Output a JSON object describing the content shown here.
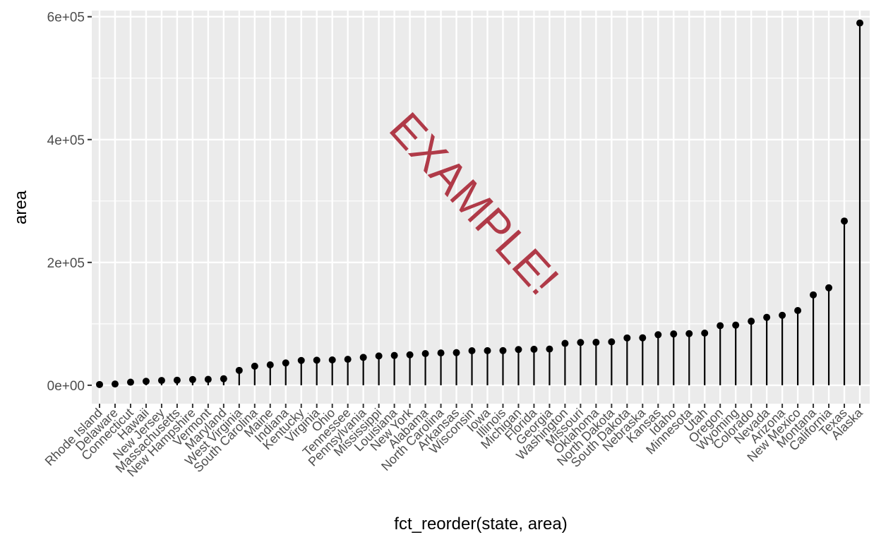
{
  "chart_data": {
    "type": "lollipop",
    "xlabel": "fct_reorder(state, area)",
    "ylabel": "area",
    "ylim": [
      -30000,
      610000
    ],
    "yticks": [
      0,
      200000,
      400000,
      600000
    ],
    "ytick_labels": [
      "0e+00",
      "2e+05",
      "4e+05",
      "6e+05"
    ],
    "watermark": "EXAMPLE!",
    "grid": true,
    "categories": [
      "Rhode Island",
      "Delaware",
      "Connecticut",
      "Hawaii",
      "New Jersey",
      "Massachusetts",
      "New Hampshire",
      "Vermont",
      "Maryland",
      "West Virginia",
      "South Carolina",
      "Maine",
      "Indiana",
      "Kentucky",
      "Virginia",
      "Ohio",
      "Tennessee",
      "Pennsylvania",
      "Mississippi",
      "Louisiana",
      "New York",
      "Alabama",
      "North Carolina",
      "Arkansas",
      "Wisconsin",
      "Iowa",
      "Illinois",
      "Michigan",
      "Florida",
      "Georgia",
      "Washington",
      "Missouri",
      "Oklahoma",
      "North Dakota",
      "South Dakota",
      "Nebraska",
      "Kansas",
      "Idaho",
      "Minnesota",
      "Utah",
      "Oregon",
      "Wyoming",
      "Colorado",
      "Nevada",
      "Arizona",
      "New Mexico",
      "Montana",
      "California",
      "Texas",
      "Alaska"
    ],
    "values": [
      1214,
      2057,
      5009,
      6450,
      7836,
      8257,
      9304,
      9609,
      10577,
      24181,
      31055,
      33215,
      36291,
      40395,
      40815,
      41222,
      42244,
      45333,
      47716,
      48523,
      49576,
      51609,
      52586,
      53104,
      56154,
      56290,
      56400,
      58216,
      58560,
      58876,
      68192,
      69686,
      69919,
      70665,
      77047,
      77227,
      82264,
      83557,
      84068,
      84916,
      96981,
      97914,
      104247,
      110540,
      113909,
      121666,
      147138,
      158693,
      267339,
      589757
    ],
    "point_color": "#000000",
    "segment_color": "#000000",
    "panel_background": "#ebebeb",
    "grid_color": "#ffffff",
    "watermark_color": "#b03a48"
  }
}
